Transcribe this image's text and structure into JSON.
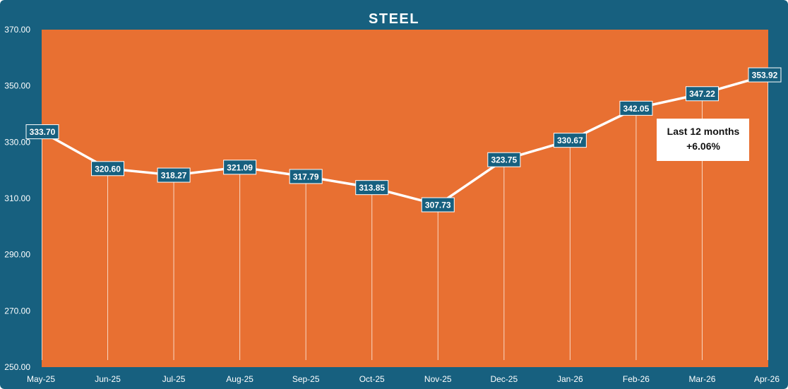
{
  "colors": {
    "frame": "#17607f",
    "plot": "#e87032",
    "line": "#ffffff",
    "label_bg": "#17607f",
    "label_text": "#ffffff",
    "axis_text": "#ffffff",
    "note_bg": "#ffffff",
    "note_text": "#111111"
  },
  "chart_data": {
    "type": "line",
    "title": "STEEL",
    "xlabel": "",
    "ylabel": "",
    "categories": [
      "May-25",
      "Jun-25",
      "Jul-25",
      "Aug-25",
      "Sep-25",
      "Oct-25",
      "Nov-25",
      "Dec-25",
      "Jan-26",
      "Feb-26",
      "Mar-26",
      "Apr-26"
    ],
    "values": [
      333.7,
      320.6,
      318.27,
      321.09,
      317.79,
      313.85,
      307.73,
      323.75,
      330.67,
      342.05,
      347.22,
      353.92
    ],
    "value_labels": [
      "333.70",
      "320.60",
      "318.27",
      "321.09",
      "317.79",
      "313.85",
      "307.73",
      "323.75",
      "330.67",
      "342.05",
      "347.22",
      "353.92"
    ],
    "ylim": [
      250,
      370
    ],
    "yticks": [
      "250.00",
      "270.00",
      "290.00",
      "310.00",
      "330.00",
      "350.00",
      "370.00"
    ],
    "ytick_values": [
      250,
      270,
      290,
      310,
      330,
      350,
      370
    ],
    "grid": false,
    "drop_lines": true,
    "legend": "none",
    "annotation": {
      "line1": "Last 12 months",
      "line2": "+6.06%"
    }
  }
}
